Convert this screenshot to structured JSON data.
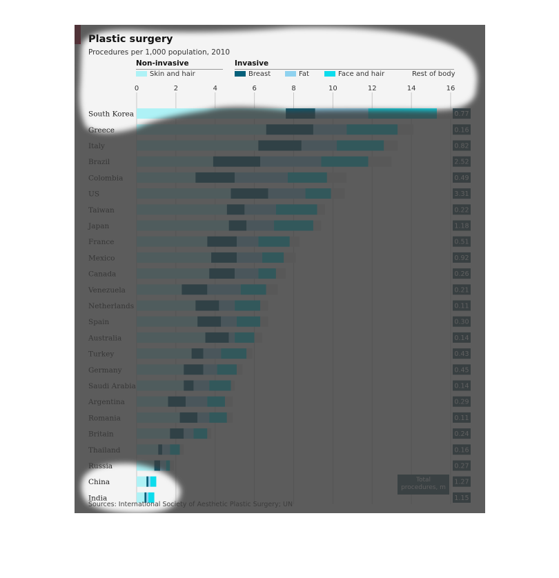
{
  "header": {
    "title": "Plastic surgery",
    "subtitle": "Procedures per 1,000 population, 2010",
    "group_noninvasive": "Non-invasive",
    "group_invasive": "Invasive"
  },
  "legend": {
    "items": [
      {
        "label": "Skin and hair",
        "color": "#aef2f6"
      },
      {
        "label": "Breast",
        "color": "#05607a"
      },
      {
        "label": "Fat",
        "color": "#8fd2ef"
      },
      {
        "label": "Face and hair",
        "color": "#0ddcec"
      },
      {
        "label": "Rest of body",
        "color": "#dcdcdc"
      }
    ]
  },
  "total_label": "Total procedures, m",
  "source": "Sources: International Society of Aesthetic Plastic Surgery; UN",
  "chart_data": {
    "type": "bar",
    "orientation": "horizontal",
    "stacked": true,
    "title": "Plastic surgery",
    "subtitle": "Procedures per 1,000 population, 2010",
    "xlim": [
      0,
      16
    ],
    "xticks": [
      0,
      2,
      4,
      6,
      8,
      10,
      12,
      14,
      16
    ],
    "grid": true,
    "legend_position": "top",
    "categories": [
      "South Korea",
      "Greece",
      "Italy",
      "Brazil",
      "Colombia",
      "US",
      "Taiwan",
      "Japan",
      "France",
      "Mexico",
      "Canada",
      "Venezuela",
      "Netherlands",
      "Spain",
      "Australia",
      "Turkey",
      "Germany",
      "Saudi Arabia",
      "Argentina",
      "Romania",
      "Britain",
      "Thailand",
      "Russia",
      "China",
      "India"
    ],
    "series": [
      {
        "name": "Skin and hair",
        "color": "#aef2f6",
        "values": [
          7.6,
          6.6,
          6.2,
          3.9,
          3.0,
          4.8,
          4.6,
          4.7,
          3.6,
          3.8,
          3.7,
          2.3,
          3.0,
          3.1,
          3.5,
          2.8,
          2.4,
          2.4,
          1.6,
          2.2,
          1.7,
          1.1,
          0.9,
          0.5,
          0.4
        ]
      },
      {
        "name": "Breast",
        "color": "#05607a",
        "values": [
          1.5,
          2.4,
          2.2,
          2.4,
          2.0,
          1.9,
          0.9,
          0.9,
          1.5,
          1.3,
          1.3,
          1.3,
          1.2,
          1.2,
          1.2,
          0.6,
          1.0,
          0.5,
          0.9,
          0.9,
          0.7,
          0.2,
          0.3,
          0.1,
          0.1
        ]
      },
      {
        "name": "Fat",
        "color": "#8fd2ef",
        "values": [
          2.7,
          1.7,
          1.8,
          3.1,
          2.7,
          1.9,
          1.6,
          1.4,
          1.1,
          1.3,
          1.2,
          1.7,
          0.8,
          0.8,
          0.3,
          0.9,
          0.7,
          0.8,
          1.1,
          0.6,
          0.5,
          0.4,
          0.3,
          0.1,
          0.1
        ]
      },
      {
        "name": "Face and hair",
        "color": "#0ddcec",
        "values": [
          3.5,
          2.6,
          2.4,
          2.4,
          2.0,
          1.3,
          2.1,
          2.0,
          1.6,
          1.1,
          0.9,
          1.3,
          1.3,
          1.2,
          1.0,
          1.3,
          1.0,
          1.1,
          0.9,
          0.9,
          0.7,
          0.5,
          0.2,
          0.3,
          0.3
        ]
      },
      {
        "name": "Rest of body",
        "color": "#dcdcdc",
        "values": [
          0.8,
          0.8,
          0.7,
          1.2,
          1.0,
          0.7,
          0.4,
          0.4,
          0.5,
          0.6,
          0.5,
          0.6,
          0.4,
          0.4,
          0.4,
          0.3,
          0.3,
          0.2,
          0.4,
          0.3,
          0.2,
          0.2,
          0.2,
          0.0,
          0.0
        ]
      }
    ],
    "total_procedures_m": [
      0.77,
      0.16,
      0.82,
      2.52,
      0.49,
      3.31,
      0.22,
      1.18,
      0.51,
      0.92,
      0.26,
      0.21,
      0.11,
      0.3,
      0.14,
      0.43,
      0.45,
      0.14,
      0.29,
      0.11,
      0.24,
      0.16,
      0.27,
      1.27,
      1.15
    ],
    "total_label": "Total procedures, m",
    "source": "Sources: International Society of Aesthetic Plastic Surgery; UN"
  }
}
